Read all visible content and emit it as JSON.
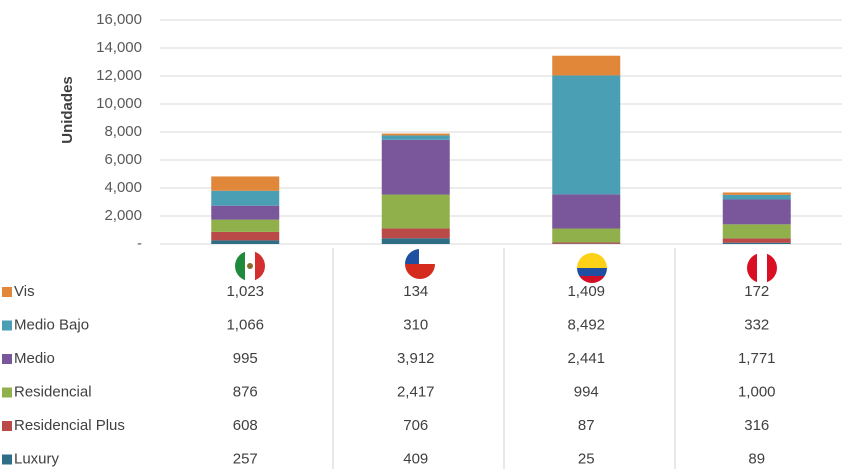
{
  "chart_data": {
    "type": "bar",
    "stacked": true,
    "y_label": "Unidades",
    "categories": [
      null,
      null,
      null,
      null
    ],
    "series": [
      {
        "name": "Vis",
        "color": "#e0873a",
        "values": [
          1023,
          134,
          1409,
          172
        ],
        "value_labels": [
          "1,023",
          "134",
          "1,409",
          "172"
        ]
      },
      {
        "name": "Medio Bajo",
        "color": "#4a9fb5",
        "values": [
          1066,
          310,
          8492,
          332
        ],
        "value_labels": [
          "1,066",
          "310",
          "8,492",
          "332"
        ]
      },
      {
        "name": "Medio",
        "color": "#7a569b",
        "values": [
          995,
          3912,
          2441,
          1771
        ],
        "value_labels": [
          "995",
          "3,912",
          "2,441",
          "1,771"
        ]
      },
      {
        "name": "Residencial",
        "color": "#8fb04a",
        "values": [
          876,
          2417,
          994,
          1000
        ],
        "value_labels": [
          "876",
          "2,417",
          "994",
          "1,000"
        ]
      },
      {
        "name": "Residencial Plus",
        "color": "#b94a48",
        "values": [
          608,
          706,
          87,
          316
        ],
        "value_labels": [
          "608",
          "706",
          "87",
          "316"
        ]
      },
      {
        "name": "Luxury",
        "color": "#2e6f87",
        "values": [
          257,
          409,
          25,
          89
        ],
        "value_labels": [
          "257",
          "409",
          "25",
          "89"
        ]
      }
    ],
    "ylim": [
      0,
      16000
    ],
    "yticks": [
      {
        "value": 0,
        "label": "-"
      },
      {
        "value": 2000,
        "label": "2,000"
      },
      {
        "value": 4000,
        "label": "4,000"
      },
      {
        "value": 6000,
        "label": "6,000"
      },
      {
        "value": 8000,
        "label": "8,000"
      },
      {
        "value": 10000,
        "label": "10,000"
      },
      {
        "value": 12000,
        "label": "12,000"
      },
      {
        "value": 14000,
        "label": "14,000"
      },
      {
        "value": 16000,
        "label": "16,000"
      }
    ],
    "grid": true
  }
}
